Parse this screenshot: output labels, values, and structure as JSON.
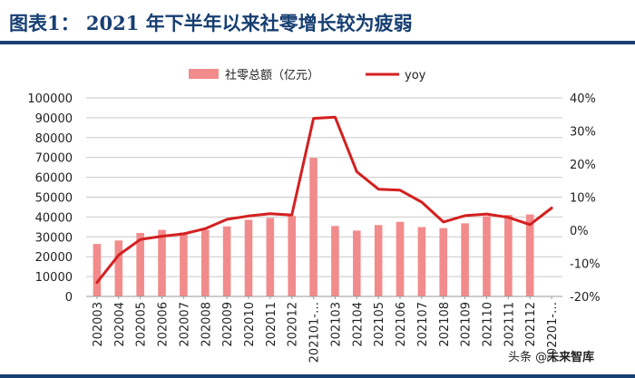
{
  "header": {
    "title": "图表1：  2021 年下半年以来社零增长较为疲弱"
  },
  "chart_data": {
    "type": "bar",
    "categories": [
      "202003",
      "202004",
      "202005",
      "202006",
      "202007",
      "202008",
      "202009",
      "202010",
      "202011",
      "202012",
      "202101-…",
      "202103",
      "202104",
      "202105",
      "202106",
      "202107",
      "202108",
      "202109",
      "202110",
      "202111",
      "202112",
      "202201-…"
    ],
    "series": [
      {
        "name": "社零总额（亿元）",
        "type": "bar",
        "axis": "left",
        "color": "#f28b8b",
        "values": [
          26450,
          28178,
          31973,
          33526,
          32203,
          33571,
          35295,
          38576,
          39514,
          40566,
          69737,
          35484,
          33153,
          35945,
          37586,
          34925,
          34395,
          36833,
          40454,
          41043,
          41269,
          null
        ]
      },
      {
        "name": "yoy",
        "type": "line",
        "axis": "right",
        "color": "#d42020",
        "values": [
          -15.8,
          -7.5,
          -2.8,
          -1.8,
          -1.1,
          0.5,
          3.3,
          4.3,
          5.0,
          4.6,
          33.8,
          34.2,
          17.7,
          12.4,
          12.1,
          8.5,
          2.5,
          4.4,
          4.9,
          3.9,
          1.7,
          6.7
        ]
      }
    ],
    "yaxis_left": {
      "min": 0,
      "max": 100000,
      "step": 10000,
      "ticks": [
        "0",
        "10000",
        "20000",
        "30000",
        "40000",
        "50000",
        "60000",
        "70000",
        "80000",
        "90000",
        "100000"
      ]
    },
    "yaxis_right": {
      "min": -20,
      "max": 40,
      "step": 10,
      "ticks": [
        "-20%",
        "-10%",
        "0%",
        "10%",
        "20%",
        "30%",
        "40%"
      ]
    },
    "grid": true,
    "legend_position": "top-center"
  },
  "watermark": {
    "prefix": "头条 @",
    "brand": "未来智库"
  }
}
